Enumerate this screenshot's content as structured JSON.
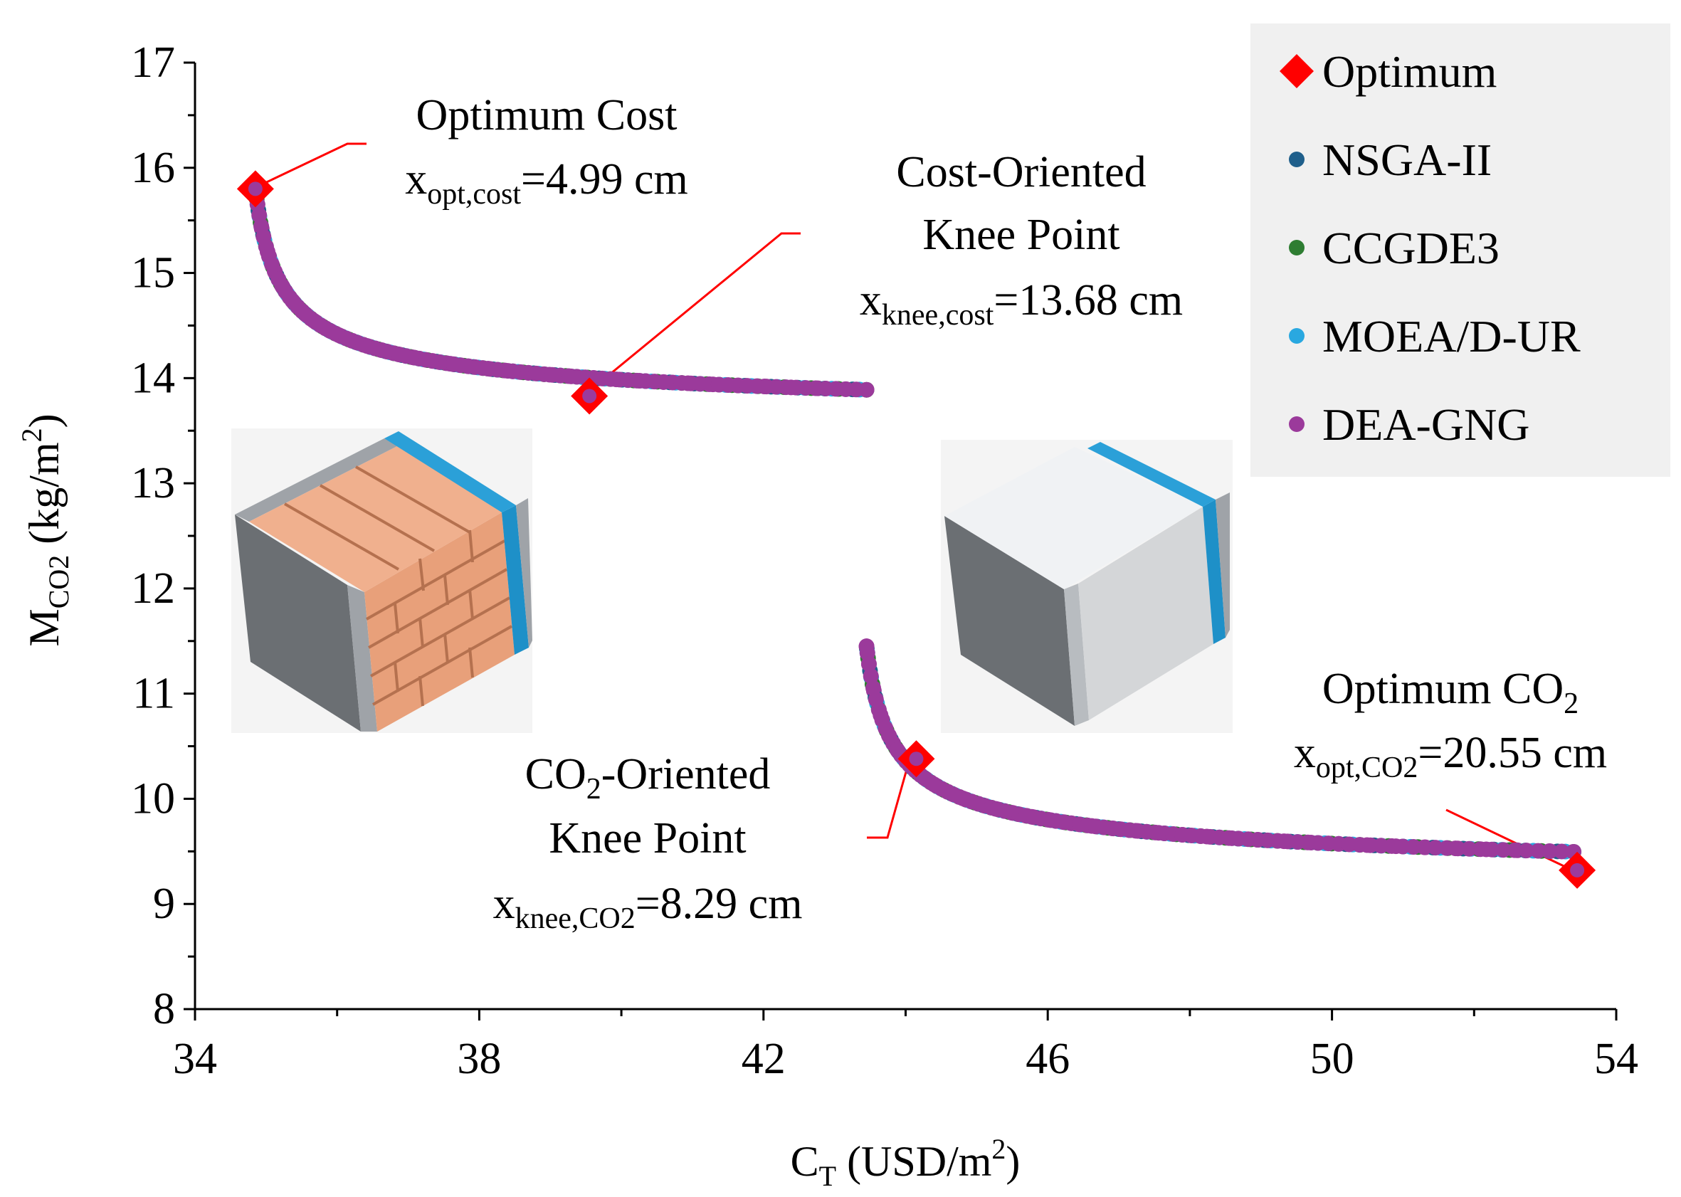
{
  "chart_data": {
    "type": "scatter",
    "title": "",
    "xlabel": {
      "main": "C",
      "sub": "T",
      "unit": " (USD/m",
      "sup": "2",
      "close": ")"
    },
    "ylabel": {
      "main": "M",
      "sub": "CO2",
      "unit": " (kg/m",
      "sup": "2",
      "close": ")"
    },
    "xlim": [
      34,
      54
    ],
    "ylim": [
      8,
      17
    ],
    "xticks": [
      34,
      38,
      42,
      46,
      50,
      54
    ],
    "yticks": [
      8,
      9,
      10,
      11,
      12,
      13,
      14,
      15,
      16,
      17
    ],
    "grid": false,
    "legend_position": "top-right",
    "legend": [
      {
        "label": "Optimum",
        "marker": "diamond",
        "color": "#ff0000"
      },
      {
        "label": "NSGA-II",
        "marker": "circle",
        "color": "#1f5f8b"
      },
      {
        "label": "CCGDE3",
        "marker": "circle",
        "color": "#2e7d32"
      },
      {
        "label": "MOEA/D-UR",
        "marker": "circle",
        "color": "#29a8e0"
      },
      {
        "label": "DEA-GNG",
        "marker": "circle",
        "color": "#9b3a9b"
      }
    ],
    "fronts": [
      {
        "name": "Brick wall front",
        "x_range": [
          34.85,
          43.45
        ],
        "y_start": 15.8,
        "y_asymptote": 13.55,
        "decay_rate": 0.5
      },
      {
        "name": "Concrete wall front",
        "x_range": [
          43.45,
          53.4
        ],
        "y_start": 11.45,
        "y_asymptote": 9.2,
        "decay_rate": 0.42
      }
    ],
    "optimum_points": [
      {
        "name": "Optimum Cost",
        "x": 34.85,
        "y": 15.8
      },
      {
        "name": "Cost-Oriented Knee Point",
        "x": 39.55,
        "y": 13.83
      },
      {
        "name": "CO2-Oriented Knee Point",
        "x": 44.15,
        "y": 10.38
      },
      {
        "name": "Optimum CO2",
        "x": 53.45,
        "y": 9.32
      }
    ],
    "annotations": {
      "opt_cost": {
        "line1": "Optimum Cost",
        "x_main": "x",
        "x_sub": "opt,cost",
        "x_value": "=4.99 cm"
      },
      "knee_cost": {
        "line1": "Cost-Oriented",
        "line2": "Knee Point",
        "x_main": "x",
        "x_sub": "knee,cost",
        "x_value": "=13.68 cm"
      },
      "knee_co2": {
        "line1_a": "CO",
        "line1_sub": "2",
        "line1_b": "-Oriented",
        "line2": "Knee Point",
        "x_main": "x",
        "x_sub": "knee,CO2",
        "x_value": "=8.29 cm"
      },
      "opt_co2": {
        "line1_a": "Optimum CO",
        "line1_sub": "2",
        "x_main": "x",
        "x_sub": "opt,CO2",
        "x_value": "=20.55 cm"
      }
    }
  },
  "colors": {
    "optimum": "#ff0000",
    "leader_line": "#ff0000",
    "legend_bg": "#f0f0f0",
    "brick": "#e8a07a",
    "brick_dark": "#b5714f",
    "insulation": "#1e90c8",
    "concrete_side": "#6b6f73",
    "panel_light": "#f0f2f4",
    "panel_mid": "#d4d6d8"
  }
}
